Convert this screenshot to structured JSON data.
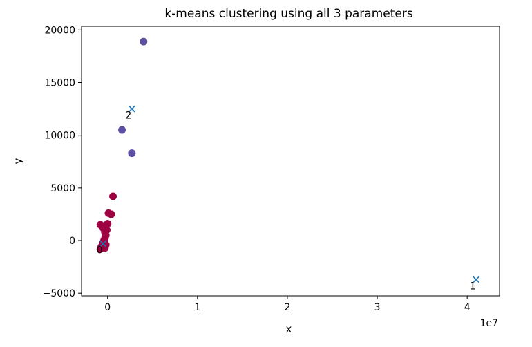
{
  "chart_data": {
    "type": "scatter",
    "title": "k-means clustering using all 3 parameters",
    "xlabel": "x",
    "ylabel": "y",
    "x_offset_label": "1e7",
    "xlim": [
      -2900000,
      43600000
    ],
    "ylim": [
      -5200000,
      20000
    ],
    "xlim_note": "",
    "x_ticks": [
      {
        "value": 0,
        "label": "0"
      },
      {
        "value": 10000000,
        "label": "1"
      },
      {
        "value": 20000000,
        "label": "2"
      },
      {
        "value": 30000000,
        "label": "3"
      },
      {
        "value": 40000000,
        "label": "4"
      }
    ],
    "y_ticks": [
      {
        "value": -5000,
        "label": "−5000"
      },
      {
        "value": 0,
        "label": "0"
      },
      {
        "value": 5000,
        "label": "5000"
      },
      {
        "value": 10000,
        "label": "10000"
      },
      {
        "value": 15000,
        "label": "15000"
      },
      {
        "value": 20000,
        "label": "20000"
      }
    ],
    "grid": false,
    "colors": {
      "cluster_0": "#9e0142",
      "cluster_2": "#5e4fa2",
      "centroid": "#1f77b4"
    },
    "points": [
      {
        "x": -800000,
        "y": -800,
        "cluster": 0
      },
      {
        "x": -700000,
        "y": -600,
        "cluster": 0
      },
      {
        "x": -600000,
        "y": -500,
        "cluster": 0
      },
      {
        "x": -300000,
        "y": -700,
        "cluster": 0
      },
      {
        "x": -200000,
        "y": -400,
        "cluster": 0
      },
      {
        "x": -500000,
        "y": -200,
        "cluster": 0
      },
      {
        "x": -400000,
        "y": 0,
        "cluster": 0
      },
      {
        "x": -300000,
        "y": 200,
        "cluster": 0
      },
      {
        "x": -200000,
        "y": 500,
        "cluster": 0
      },
      {
        "x": -300000,
        "y": 800,
        "cluster": 0
      },
      {
        "x": -500000,
        "y": 1200,
        "cluster": 0
      },
      {
        "x": -800000,
        "y": 1500,
        "cluster": 0
      },
      {
        "x": -300000,
        "y": 1400,
        "cluster": 0
      },
      {
        "x": 0,
        "y": 1600,
        "cluster": 0
      },
      {
        "x": 100000,
        "y": 2600,
        "cluster": 0
      },
      {
        "x": 400000,
        "y": 2500,
        "cluster": 0
      },
      {
        "x": 600000,
        "y": 4200,
        "cluster": 0
      },
      {
        "x": -100000,
        "y": 1000,
        "cluster": 0
      },
      {
        "x": 2700000,
        "y": 8300,
        "cluster": 2
      },
      {
        "x": 1600000,
        "y": 10500,
        "cluster": 2
      },
      {
        "x": 4000000,
        "y": 18900,
        "cluster": 2
      }
    ],
    "centroids": [
      {
        "label": "0",
        "x": -500000,
        "y": -300
      },
      {
        "label": "1",
        "x": 41000000,
        "y": -3700
      },
      {
        "label": "2",
        "x": 2700000,
        "y": 12500
      }
    ]
  }
}
